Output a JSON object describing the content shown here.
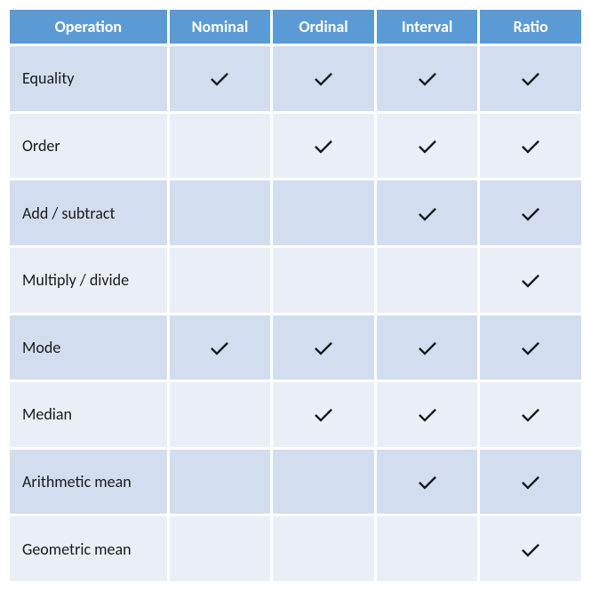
{
  "table": {
    "type": "table",
    "header_bg": "#5b9bd5",
    "header_fg": "#ffffff",
    "row_bg_odd": "#d2deef",
    "row_bg_even": "#eaeff7",
    "text_color": "#1a1a1a",
    "check_color": "#1a1a1a",
    "font_family": "Calibri",
    "header_fontsize": 18,
    "cell_fontsize": 18,
    "columns": [
      "Operation",
      "Nominal",
      "Ordinal",
      "Interval",
      "Ratio"
    ],
    "column_widths_pct": [
      28,
      18,
      18,
      18,
      18
    ],
    "rows": [
      {
        "label": "Equality",
        "values": [
          true,
          true,
          true,
          true
        ]
      },
      {
        "label": "Order",
        "values": [
          false,
          true,
          true,
          true
        ]
      },
      {
        "label": "Add / subtract",
        "values": [
          false,
          false,
          true,
          true
        ]
      },
      {
        "label": "Multiply / divide",
        "values": [
          false,
          false,
          false,
          true
        ]
      },
      {
        "label": "Mode",
        "values": [
          true,
          true,
          true,
          true
        ]
      },
      {
        "label": "Median",
        "values": [
          false,
          true,
          true,
          true
        ]
      },
      {
        "label": "Arithmetic mean",
        "values": [
          false,
          false,
          true,
          true
        ]
      },
      {
        "label": "Geometric mean",
        "values": [
          false,
          false,
          false,
          true
        ]
      }
    ]
  }
}
